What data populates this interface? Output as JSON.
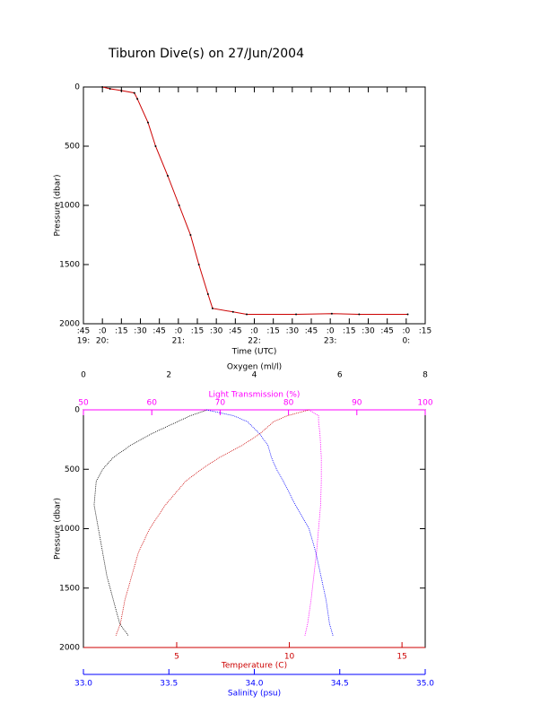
{
  "chart_data": [
    {
      "type": "line",
      "title": "Tiburon Dive(s) on 27/Jun/2004",
      "x_label": "Time (UTC)",
      "y_label": "Pressure (dbar)",
      "x": [
        20.0,
        20.1,
        20.25,
        20.42,
        20.46,
        20.6,
        20.7,
        20.86,
        21.01,
        21.16,
        21.27,
        21.39,
        21.45,
        21.72,
        21.9,
        22.55,
        23.02,
        23.38,
        24.02
      ],
      "values": [
        0,
        15,
        30,
        50,
        100,
        300,
        500,
        750,
        1000,
        1250,
        1500,
        1750,
        1870,
        1900,
        1920,
        1920,
        1915,
        1920,
        1920
      ],
      "color": "#cc0000",
      "marker_color": "#000000",
      "xlim": [
        19.75,
        24.25
      ],
      "xticks": [
        {
          "value": 19.75,
          "label": ":45"
        },
        {
          "value": 20,
          "label": ":0"
        },
        {
          "value": 20.25,
          "label": ":15"
        },
        {
          "value": 20.5,
          "label": ":30"
        },
        {
          "value": 20.75,
          "label": ":45"
        },
        {
          "value": 21,
          "label": ":0"
        },
        {
          "value": 21.25,
          "label": ":15"
        },
        {
          "value": 21.5,
          "label": ":30"
        },
        {
          "value": 21.75,
          "label": ":45"
        },
        {
          "value": 22,
          "label": ":0"
        },
        {
          "value": 22.25,
          "label": ":15"
        },
        {
          "value": 22.5,
          "label": ":30"
        },
        {
          "value": 22.75,
          "label": ":45"
        },
        {
          "value": 23,
          "label": ":0"
        },
        {
          "value": 23.25,
          "label": ":15"
        },
        {
          "value": 23.5,
          "label": ":30"
        },
        {
          "value": 23.75,
          "label": ":45"
        },
        {
          "value": 24,
          "label": ":0"
        },
        {
          "value": 24.25,
          "label": ":15"
        }
      ],
      "xticks_hours": [
        {
          "value": 19.75,
          "label": "19:"
        },
        {
          "value": 20,
          "label": "20:"
        },
        {
          "value": 21,
          "label": "21:"
        },
        {
          "value": 22,
          "label": "22:"
        },
        {
          "value": 23,
          "label": "23:"
        },
        {
          "value": 24,
          "label": "0:"
        }
      ],
      "ylim": [
        2000,
        0
      ],
      "yticks": [
        0,
        500,
        1000,
        1500,
        2000
      ]
    },
    {
      "type": "profile",
      "y_label": "Pressure (dbar)",
      "ylim": [
        2000,
        0
      ],
      "yticks": [
        0,
        500,
        1000,
        1500,
        2000
      ],
      "pressure": [
        0,
        50,
        100,
        200,
        300,
        400,
        500,
        600,
        800,
        1000,
        1200,
        1400,
        1600,
        1800,
        1900
      ],
      "x_axes": [
        {
          "label": "Oxygen (ml/l)",
          "color": "#000000",
          "position": "top",
          "xlim": [
            0,
            8
          ],
          "xticks": [
            0,
            2,
            4,
            6,
            8
          ]
        },
        {
          "label": "Light Transmission (%)",
          "color": "#ff00ff",
          "position": "top",
          "xlim": [
            50,
            100
          ],
          "xticks": [
            50,
            60,
            70,
            80,
            90,
            100
          ]
        },
        {
          "label": "Temperature (C)",
          "color": "#cc0000",
          "position": "bottom",
          "xlim": [
            0.86,
            16.03
          ],
          "xticks": [
            5,
            10,
            15
          ]
        },
        {
          "label": "Salinity (psu)",
          "color": "#0000ff",
          "position": "bottom",
          "xlim": [
            33,
            35
          ],
          "xticks": [
            {
              "value": 33,
              "label": "33.0"
            },
            {
              "value": 33.5,
              "label": "33.5"
            },
            {
              "value": 34,
              "label": "34.0"
            },
            {
              "value": 34.5,
              "label": "34.5"
            },
            {
              "value": 35,
              "label": "35.0"
            }
          ]
        }
      ],
      "series": [
        {
          "axis": 0,
          "color": "#000000",
          "values": [
            2.9,
            2.5,
            2.2,
            1.6,
            1.1,
            0.7,
            0.45,
            0.3,
            0.25,
            0.35,
            0.45,
            0.55,
            0.7,
            0.85,
            1.05
          ]
        },
        {
          "axis": 1,
          "color": "#ff00ff",
          "values": [
            83,
            84.4,
            84.4,
            84.6,
            84.7,
            84.8,
            84.8,
            84.8,
            84.7,
            84.4,
            84.1,
            83.7,
            83.3,
            82.8,
            82.4
          ]
        },
        {
          "axis": 2,
          "color": "#cc0000",
          "values": [
            10.88,
            9.9,
            9.3,
            8.7,
            7.9,
            6.9,
            6.1,
            5.4,
            4.5,
            3.8,
            3.3,
            3.0,
            2.7,
            2.5,
            2.3
          ]
        },
        {
          "axis": 3,
          "color": "#0000ff",
          "values": [
            33.72,
            33.88,
            33.96,
            34.03,
            34.08,
            34.1,
            34.13,
            34.17,
            34.24,
            34.32,
            34.36,
            34.39,
            34.42,
            34.44,
            34.46
          ]
        }
      ]
    }
  ]
}
